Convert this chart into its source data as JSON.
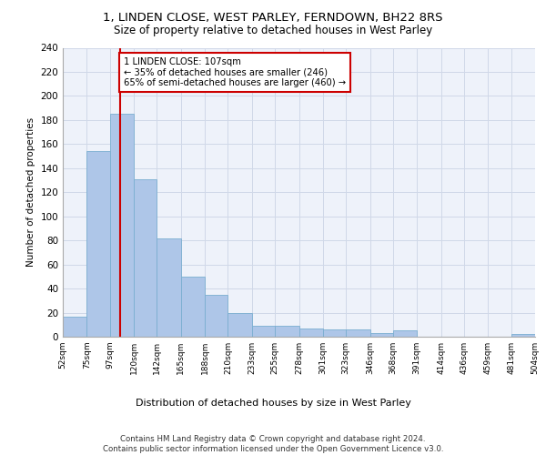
{
  "title1": "1, LINDEN CLOSE, WEST PARLEY, FERNDOWN, BH22 8RS",
  "title2": "Size of property relative to detached houses in West Parley",
  "xlabel": "Distribution of detached houses by size in West Parley",
  "ylabel": "Number of detached properties",
  "bin_edges": [
    52,
    75,
    97,
    120,
    142,
    165,
    188,
    210,
    233,
    255,
    278,
    301,
    323,
    346,
    368,
    391,
    414,
    436,
    459,
    481,
    504
  ],
  "bar_heights": [
    17,
    154,
    185,
    131,
    82,
    50,
    35,
    20,
    9,
    9,
    7,
    6,
    6,
    3,
    5,
    0,
    0,
    0,
    0,
    2
  ],
  "tick_labels": [
    "52sqm",
    "75sqm",
    "97sqm",
    "120sqm",
    "142sqm",
    "165sqm",
    "188sqm",
    "210sqm",
    "233sqm",
    "255sqm",
    "278sqm",
    "301sqm",
    "323sqm",
    "346sqm",
    "368sqm",
    "391sqm",
    "414sqm",
    "436sqm",
    "459sqm",
    "481sqm",
    "504sqm"
  ],
  "bar_color": "#aec6e8",
  "bar_edge_color": "#7aaed0",
  "grid_color": "#d0d8e8",
  "bg_color": "#eef2fa",
  "vline_x": 107,
  "vline_color": "#cc0000",
  "annotation_text": "1 LINDEN CLOSE: 107sqm\n← 35% of detached houses are smaller (246)\n65% of semi-detached houses are larger (460) →",
  "annotation_box_color": "white",
  "annotation_box_edge": "#cc0000",
  "footer": "Contains HM Land Registry data © Crown copyright and database right 2024.\nContains public sector information licensed under the Open Government Licence v3.0.",
  "ylim": [
    0,
    240
  ],
  "yticks": [
    0,
    20,
    40,
    60,
    80,
    100,
    120,
    140,
    160,
    180,
    200,
    220,
    240
  ]
}
